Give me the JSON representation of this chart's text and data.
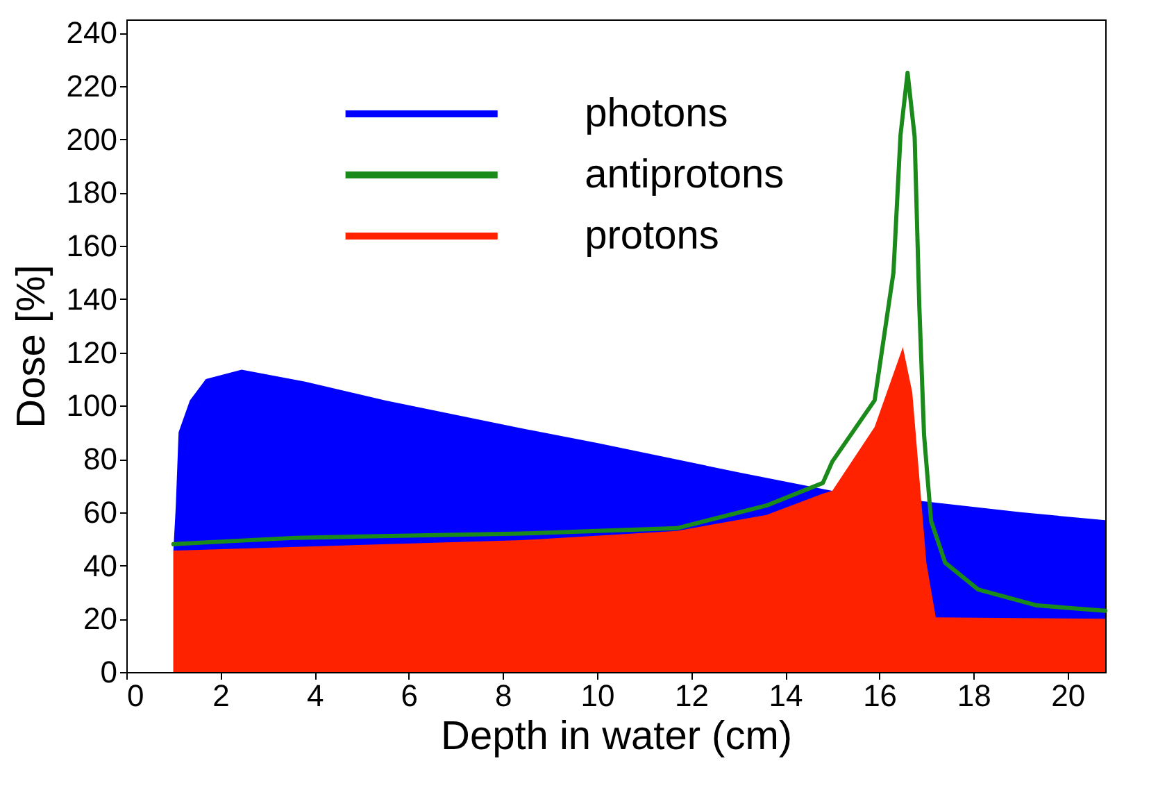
{
  "chart_data": {
    "type": "area",
    "xlabel": "Depth in water (cm)",
    "ylabel": "Dose [%]",
    "xlim": [
      0,
      20.8
    ],
    "ylim": [
      0,
      245
    ],
    "xticks": [
      0,
      2,
      4,
      6,
      8,
      10,
      12,
      14,
      16,
      18,
      20
    ],
    "yticks": [
      0,
      20,
      40,
      60,
      80,
      100,
      120,
      140,
      160,
      180,
      200,
      220,
      240
    ],
    "grid": false,
    "legend": "top left",
    "series": [
      {
        "name": "photons",
        "color": "#0000ff",
        "type": "area",
        "x": [
          1,
          1.05,
          1.11,
          1.35,
          1.69,
          2.45,
          3.8,
          5.5,
          8.4,
          10,
          13,
          15,
          17,
          19,
          20.8
        ],
        "values": [
          46,
          62,
          90,
          102,
          110,
          113.5,
          109,
          102,
          91.5,
          86,
          75,
          68,
          64,
          60,
          57
        ]
      },
      {
        "name": "antiprotons",
        "color": "#1a8a1a",
        "type": "line",
        "x": [
          1,
          3.6,
          8.4,
          11.7,
          13.6,
          14.8,
          15,
          15.9,
          16.3,
          16.45,
          16.6,
          16.75,
          16.85,
          16.95,
          17.1,
          17.4,
          18.1,
          19.35,
          20.8
        ],
        "values": [
          48,
          50.4,
          52,
          54,
          62.5,
          71,
          79,
          102,
          150,
          201.6,
          225,
          201,
          137,
          89,
          56.7,
          41,
          31,
          25,
          23
        ]
      },
      {
        "name": "protons",
        "color": "#ff2200",
        "type": "area",
        "x": [
          1,
          3.6,
          8.4,
          11.7,
          13.6,
          14.8,
          15,
          15.9,
          16.3,
          16.5,
          16.7,
          16.85,
          17,
          17.2,
          20.8
        ],
        "values": [
          45.6,
          47,
          49.5,
          53,
          59,
          67,
          68,
          92,
          112,
          122,
          105,
          73,
          41,
          20.5,
          20
        ]
      }
    ]
  }
}
